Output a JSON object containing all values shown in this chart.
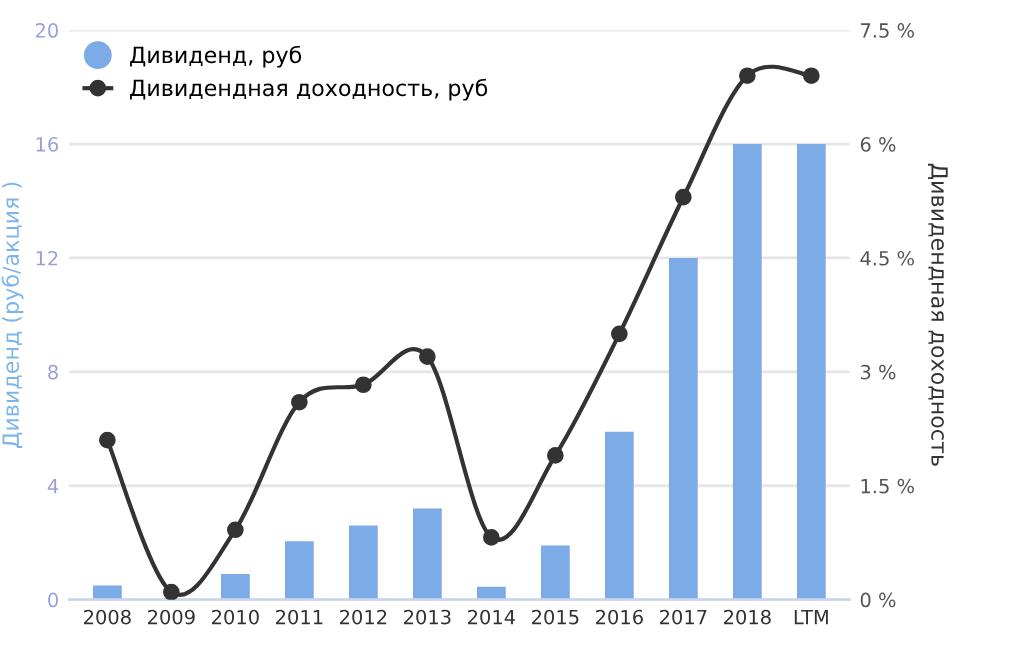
{
  "chart_data": {
    "type": "bar",
    "categories": [
      "2008",
      "2009",
      "2010",
      "2011",
      "2012",
      "2013",
      "2014",
      "2015",
      "2016",
      "2017",
      "2018",
      "LTM"
    ],
    "ylabel": "Дивиденд (руб/акция )",
    "y2label": "Дивидендная доходность",
    "series": [
      {
        "name": "Дивиденд, руб",
        "color": "#7cabe5",
        "values": [
          0.5,
          0,
          0.9,
          2.05,
          2.6,
          3.2,
          0.45,
          1.9,
          5.9,
          12.0,
          16.0,
          16.0
        ]
      },
      {
        "name": "Дивидендная доходность, руб",
        "type": "line",
        "axis": "y2",
        "color": "#333333",
        "marker": "circle",
        "values": [
          2.1,
          0.1,
          0.92,
          2.6,
          2.83,
          3.2,
          0.82,
          1.9,
          3.5,
          5.3,
          6.9,
          6.9
        ]
      }
    ],
    "ylim": [
      0,
      20
    ],
    "yticks": [
      0,
      4,
      8,
      12,
      16,
      20
    ],
    "y2lim": [
      0,
      7.5
    ],
    "y2ticks": [
      {
        "value": 0,
        "label": "0 %"
      },
      {
        "value": 1.5,
        "label": "1.5 %"
      },
      {
        "value": 3,
        "label": "3 %"
      },
      {
        "value": 4.5,
        "label": "4.5 %"
      },
      {
        "value": 6,
        "label": "6 %"
      },
      {
        "value": 7.5,
        "label": "7.5 %"
      }
    ],
    "grid": "y",
    "legend": "top left"
  }
}
